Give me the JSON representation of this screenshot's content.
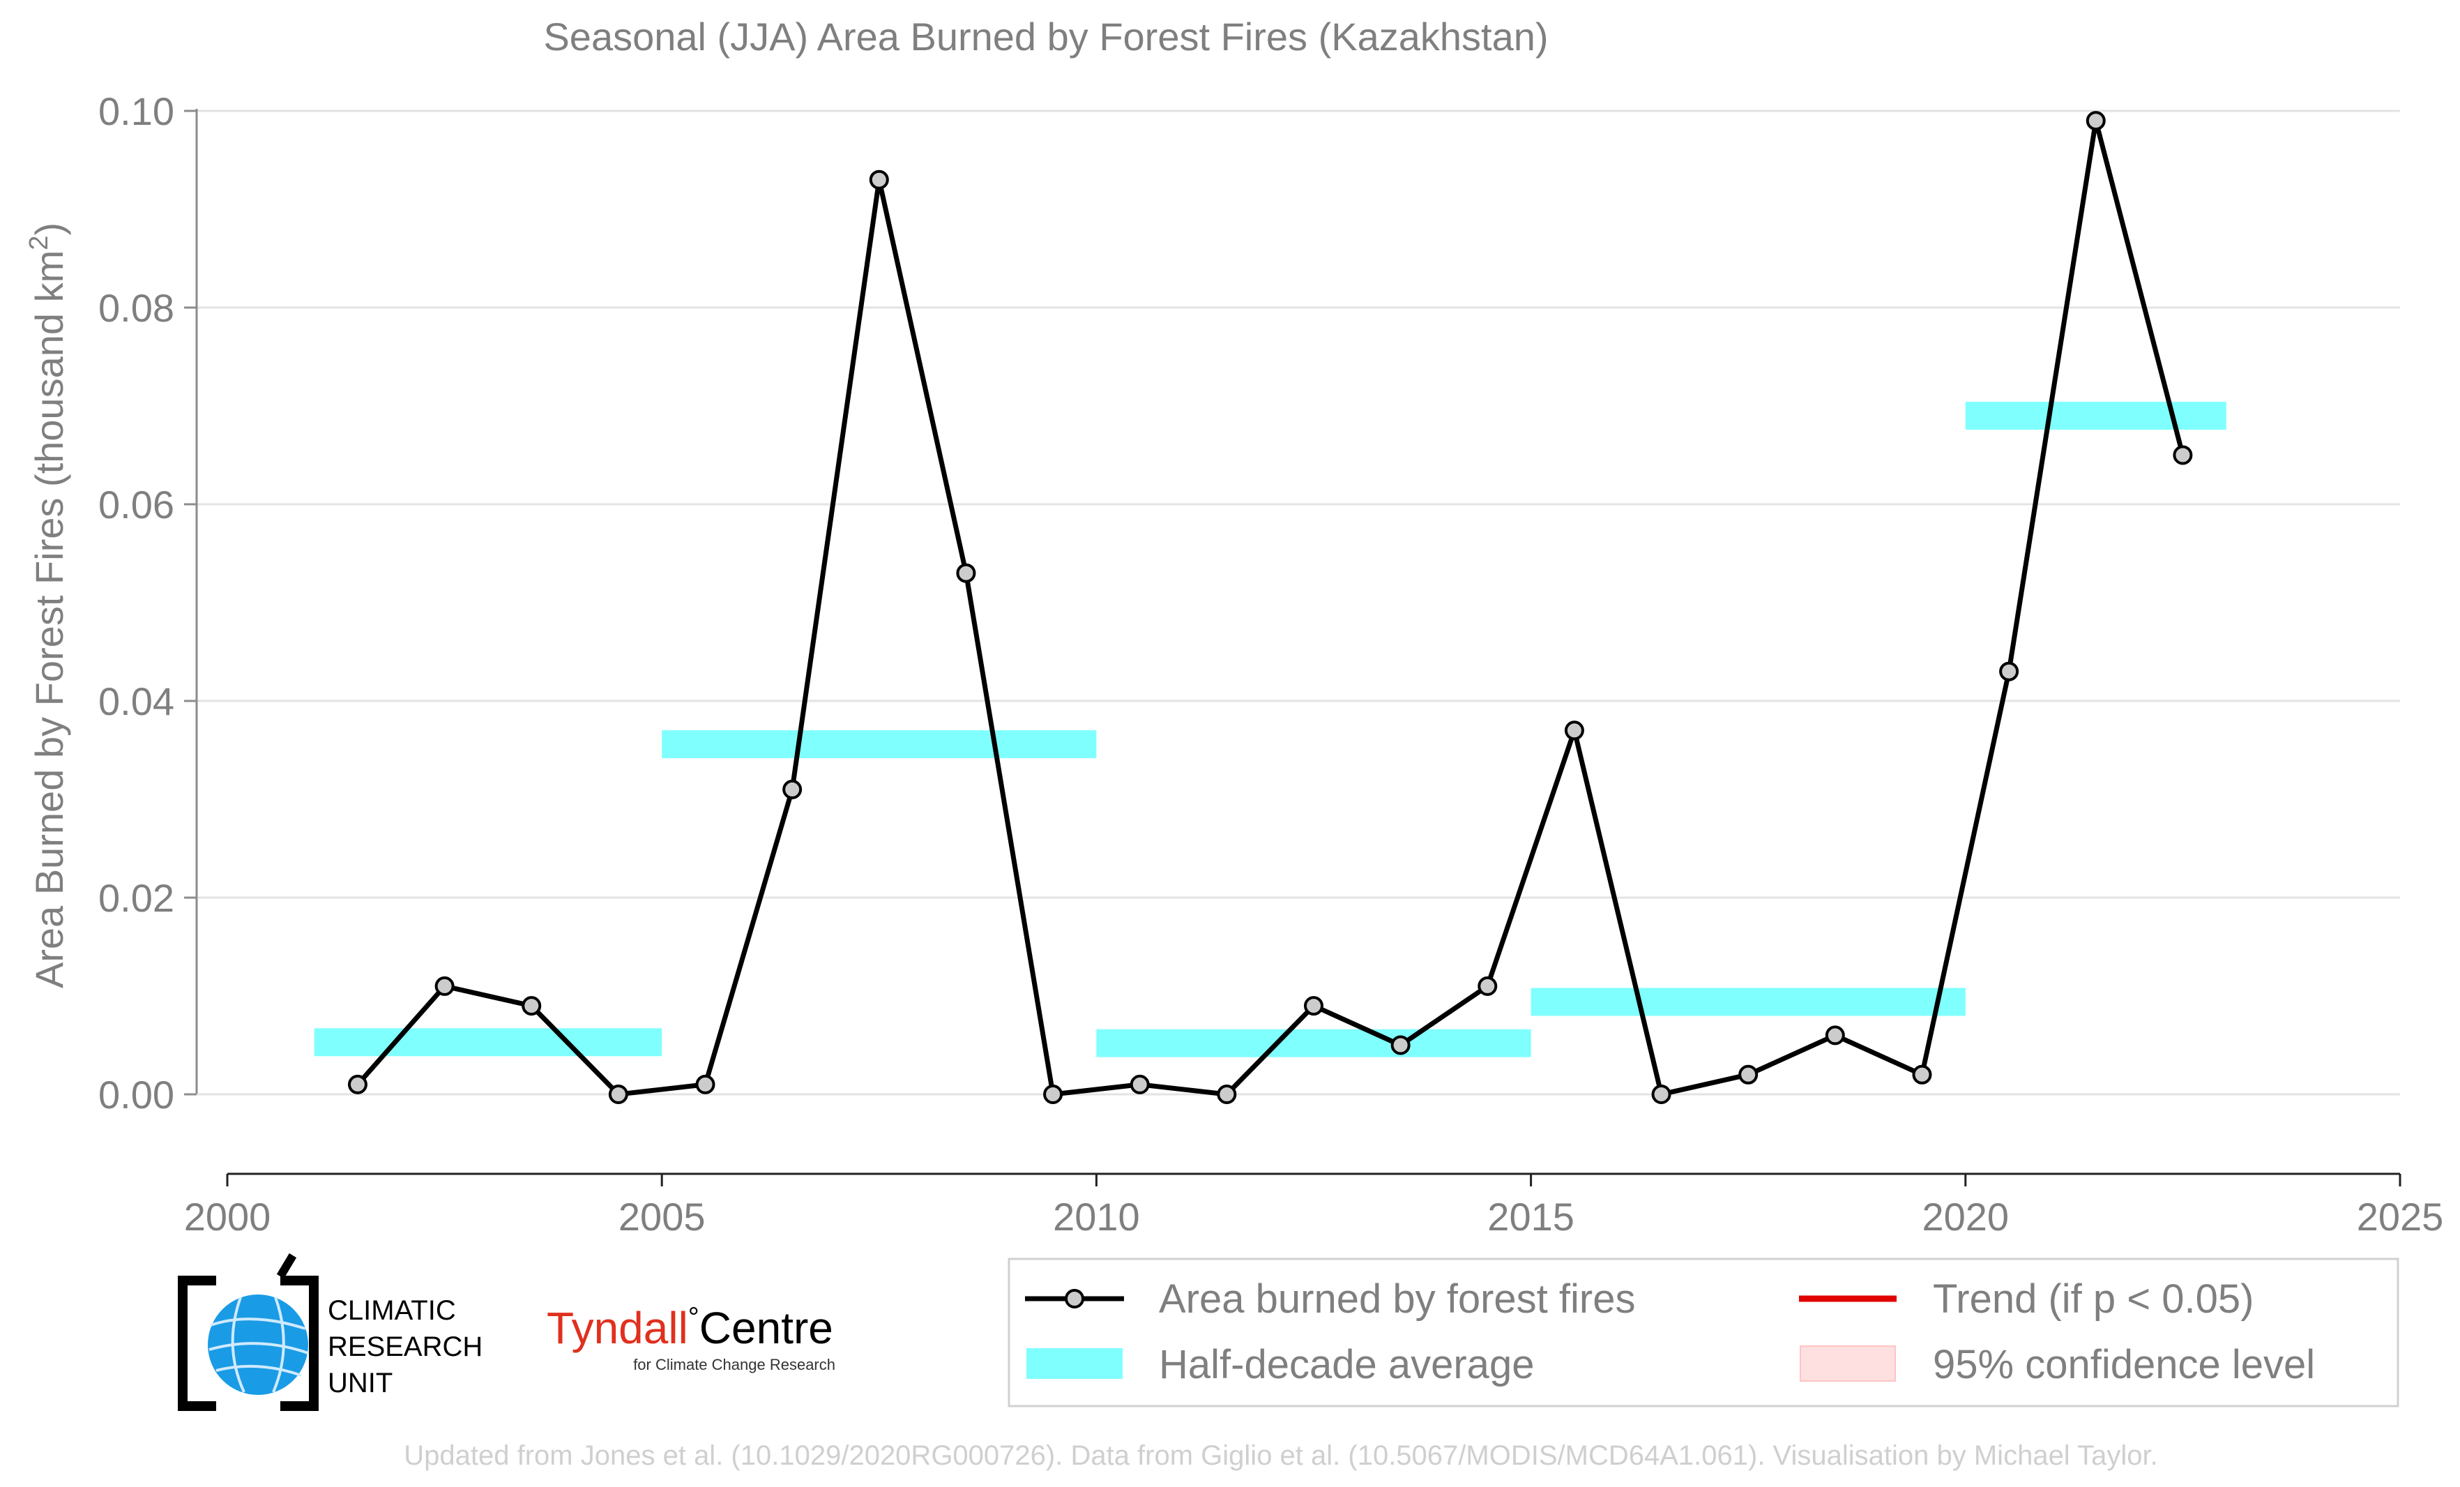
{
  "chart_data": {
    "type": "line",
    "title": "Seasonal (JJA) Area Burned by Forest Fires (Kazakhstan)",
    "ylabel": "Area Burned by Forest Fires (thousand km",
    "ylabel_sup": "2",
    "ylabel_end": ")",
    "xlabel": "",
    "xlim": [
      2000,
      2025
    ],
    "ylim": [
      0,
      0.1
    ],
    "x_ticks": [
      2000,
      2005,
      2010,
      2015,
      2020,
      2025
    ],
    "y_ticks": [
      "0.00",
      "0.02",
      "0.04",
      "0.06",
      "0.08",
      "0.10"
    ],
    "grid": "horizontal",
    "series": [
      {
        "name": "Area burned by forest fires",
        "color": "#000000",
        "marker_fill": "#cccccc",
        "x": [
          2001.5,
          2002.5,
          2003.5,
          2004.5,
          2005.5,
          2006.5,
          2007.5,
          2008.5,
          2009.5,
          2010.5,
          2011.5,
          2012.5,
          2013.5,
          2014.5,
          2015.5,
          2016.5,
          2017.5,
          2018.5,
          2019.5,
          2020.5,
          2021.5,
          2022.5
        ],
        "y": [
          0.001,
          0.011,
          0.009,
          0.0,
          0.001,
          0.031,
          0.093,
          0.053,
          0.0,
          0.001,
          0.0,
          0.009,
          0.005,
          0.011,
          0.037,
          0.0,
          0.002,
          0.006,
          0.002,
          0.043,
          0.099,
          0.065
        ]
      }
    ],
    "half_decade_average": {
      "name": "Half-decade average",
      "color": "#80ffff",
      "segments": [
        {
          "x_start": 2001,
          "x_end": 2005,
          "value": 0.0053
        },
        {
          "x_start": 2005,
          "x_end": 2010,
          "value": 0.0356
        },
        {
          "x_start": 2010,
          "x_end": 2015,
          "value": 0.0052
        },
        {
          "x_start": 2015,
          "x_end": 2020,
          "value": 0.0094
        },
        {
          "x_start": 2020,
          "x_end": 2023,
          "value": 0.069
        }
      ]
    },
    "legend": {
      "placement": "bottom-right",
      "items": [
        {
          "label": "Area burned by forest fires",
          "style": "line-marker",
          "color": "#000000"
        },
        {
          "label": "Trend (if p < 0.05)",
          "style": "line",
          "color": "#e00000"
        },
        {
          "label": "Half-decade average",
          "style": "band",
          "color": "#80ffff"
        },
        {
          "label": "95% confidence level",
          "style": "band",
          "color": "#ffe0e0"
        }
      ]
    }
  },
  "logos": {
    "cru": {
      "line1": "CLIMATIC",
      "line2": "RESEARCH",
      "line3": "UNIT",
      "icon": "globe-icon"
    },
    "tyndall": {
      "name_red": "Tyndall",
      "degree": "°",
      "name_black": "Centre",
      "subtitle": "for Climate Change Research",
      "red_color": "#e0301e"
    }
  },
  "footer": "Updated from Jones et al. (10.1029/2020RG000726). Data from Giglio et al. (10.5067/MODIS/MCD64A1.061). Visualisation by Michael Taylor."
}
